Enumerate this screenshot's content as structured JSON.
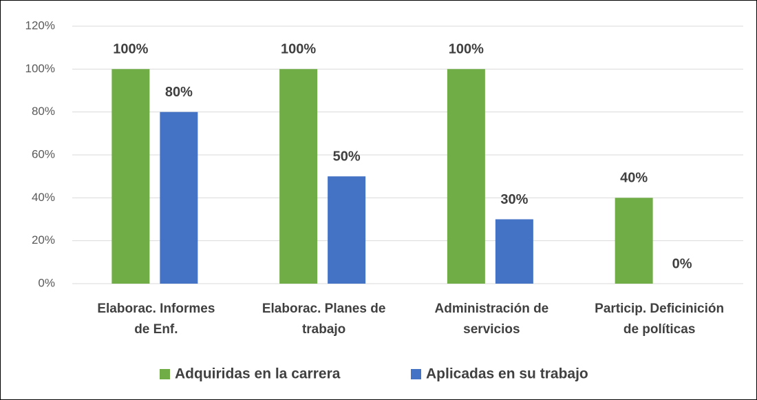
{
  "chart_data": {
    "type": "bar",
    "categories": [
      "Elaborac. Informes\nde Enf.",
      "Elaborac. Planes de\ntrabajo",
      "Administración de\nservicios",
      "Particip. Deficinición\nde políticas"
    ],
    "series": [
      {
        "name": "Adquiridas en la carrera",
        "color": "#70ad47",
        "values": [
          100,
          100,
          100,
          40
        ],
        "value_labels": [
          "100%",
          "100%",
          "100%",
          "40%"
        ]
      },
      {
        "name": "Aplicadas en su trabajo",
        "color": "#4472c4",
        "values": [
          80,
          50,
          30,
          0
        ],
        "value_labels": [
          "80%",
          "50%",
          "30%",
          "0%"
        ]
      }
    ],
    "ylim": [
      0,
      120
    ],
    "yticks": [
      {
        "value": 0,
        "label": "0%"
      },
      {
        "value": 20,
        "label": "20%"
      },
      {
        "value": 40,
        "label": "40%"
      },
      {
        "value": 60,
        "label": "60%"
      },
      {
        "value": 80,
        "label": "80%"
      },
      {
        "value": 100,
        "label": "100%"
      },
      {
        "value": 120,
        "label": "120%"
      }
    ],
    "grid": true,
    "legend": "bottom"
  }
}
